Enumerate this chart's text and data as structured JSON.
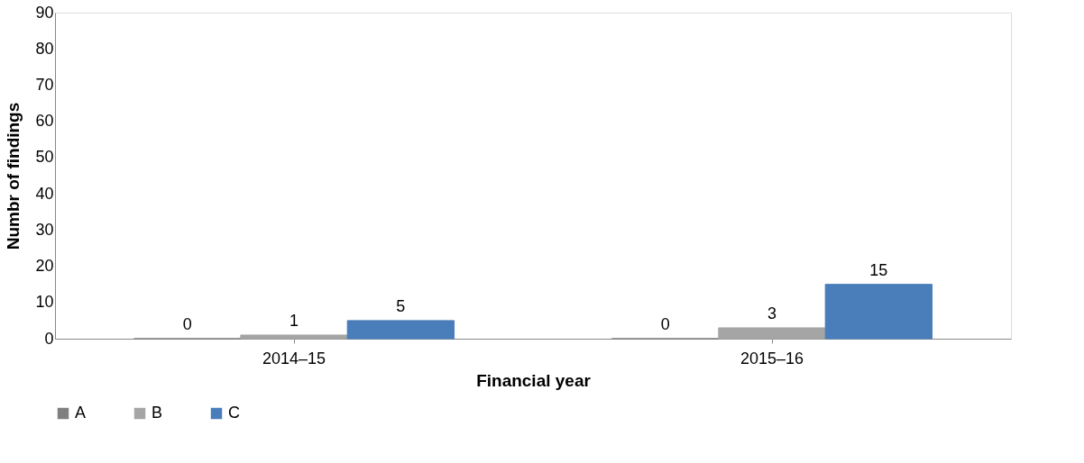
{
  "chart_data": {
    "type": "bar",
    "xlabel": "Financial year",
    "ylabel": "Numbr of findings",
    "categories": [
      "2014–15",
      "2015–16"
    ],
    "series": [
      {
        "name": "A",
        "color": "#7f7f7f",
        "values": [
          0,
          0
        ]
      },
      {
        "name": "B",
        "color": "#a5a5a5",
        "values": [
          1,
          3
        ]
      },
      {
        "name": "C",
        "color": "#4a7ebb",
        "values": [
          5,
          15
        ]
      }
    ],
    "ylim": [
      0,
      90
    ],
    "yticks": [
      0,
      10,
      20,
      30,
      40,
      50,
      60,
      70,
      80,
      90
    ],
    "data_labels": true,
    "grid": false,
    "legend": "bottom left"
  }
}
